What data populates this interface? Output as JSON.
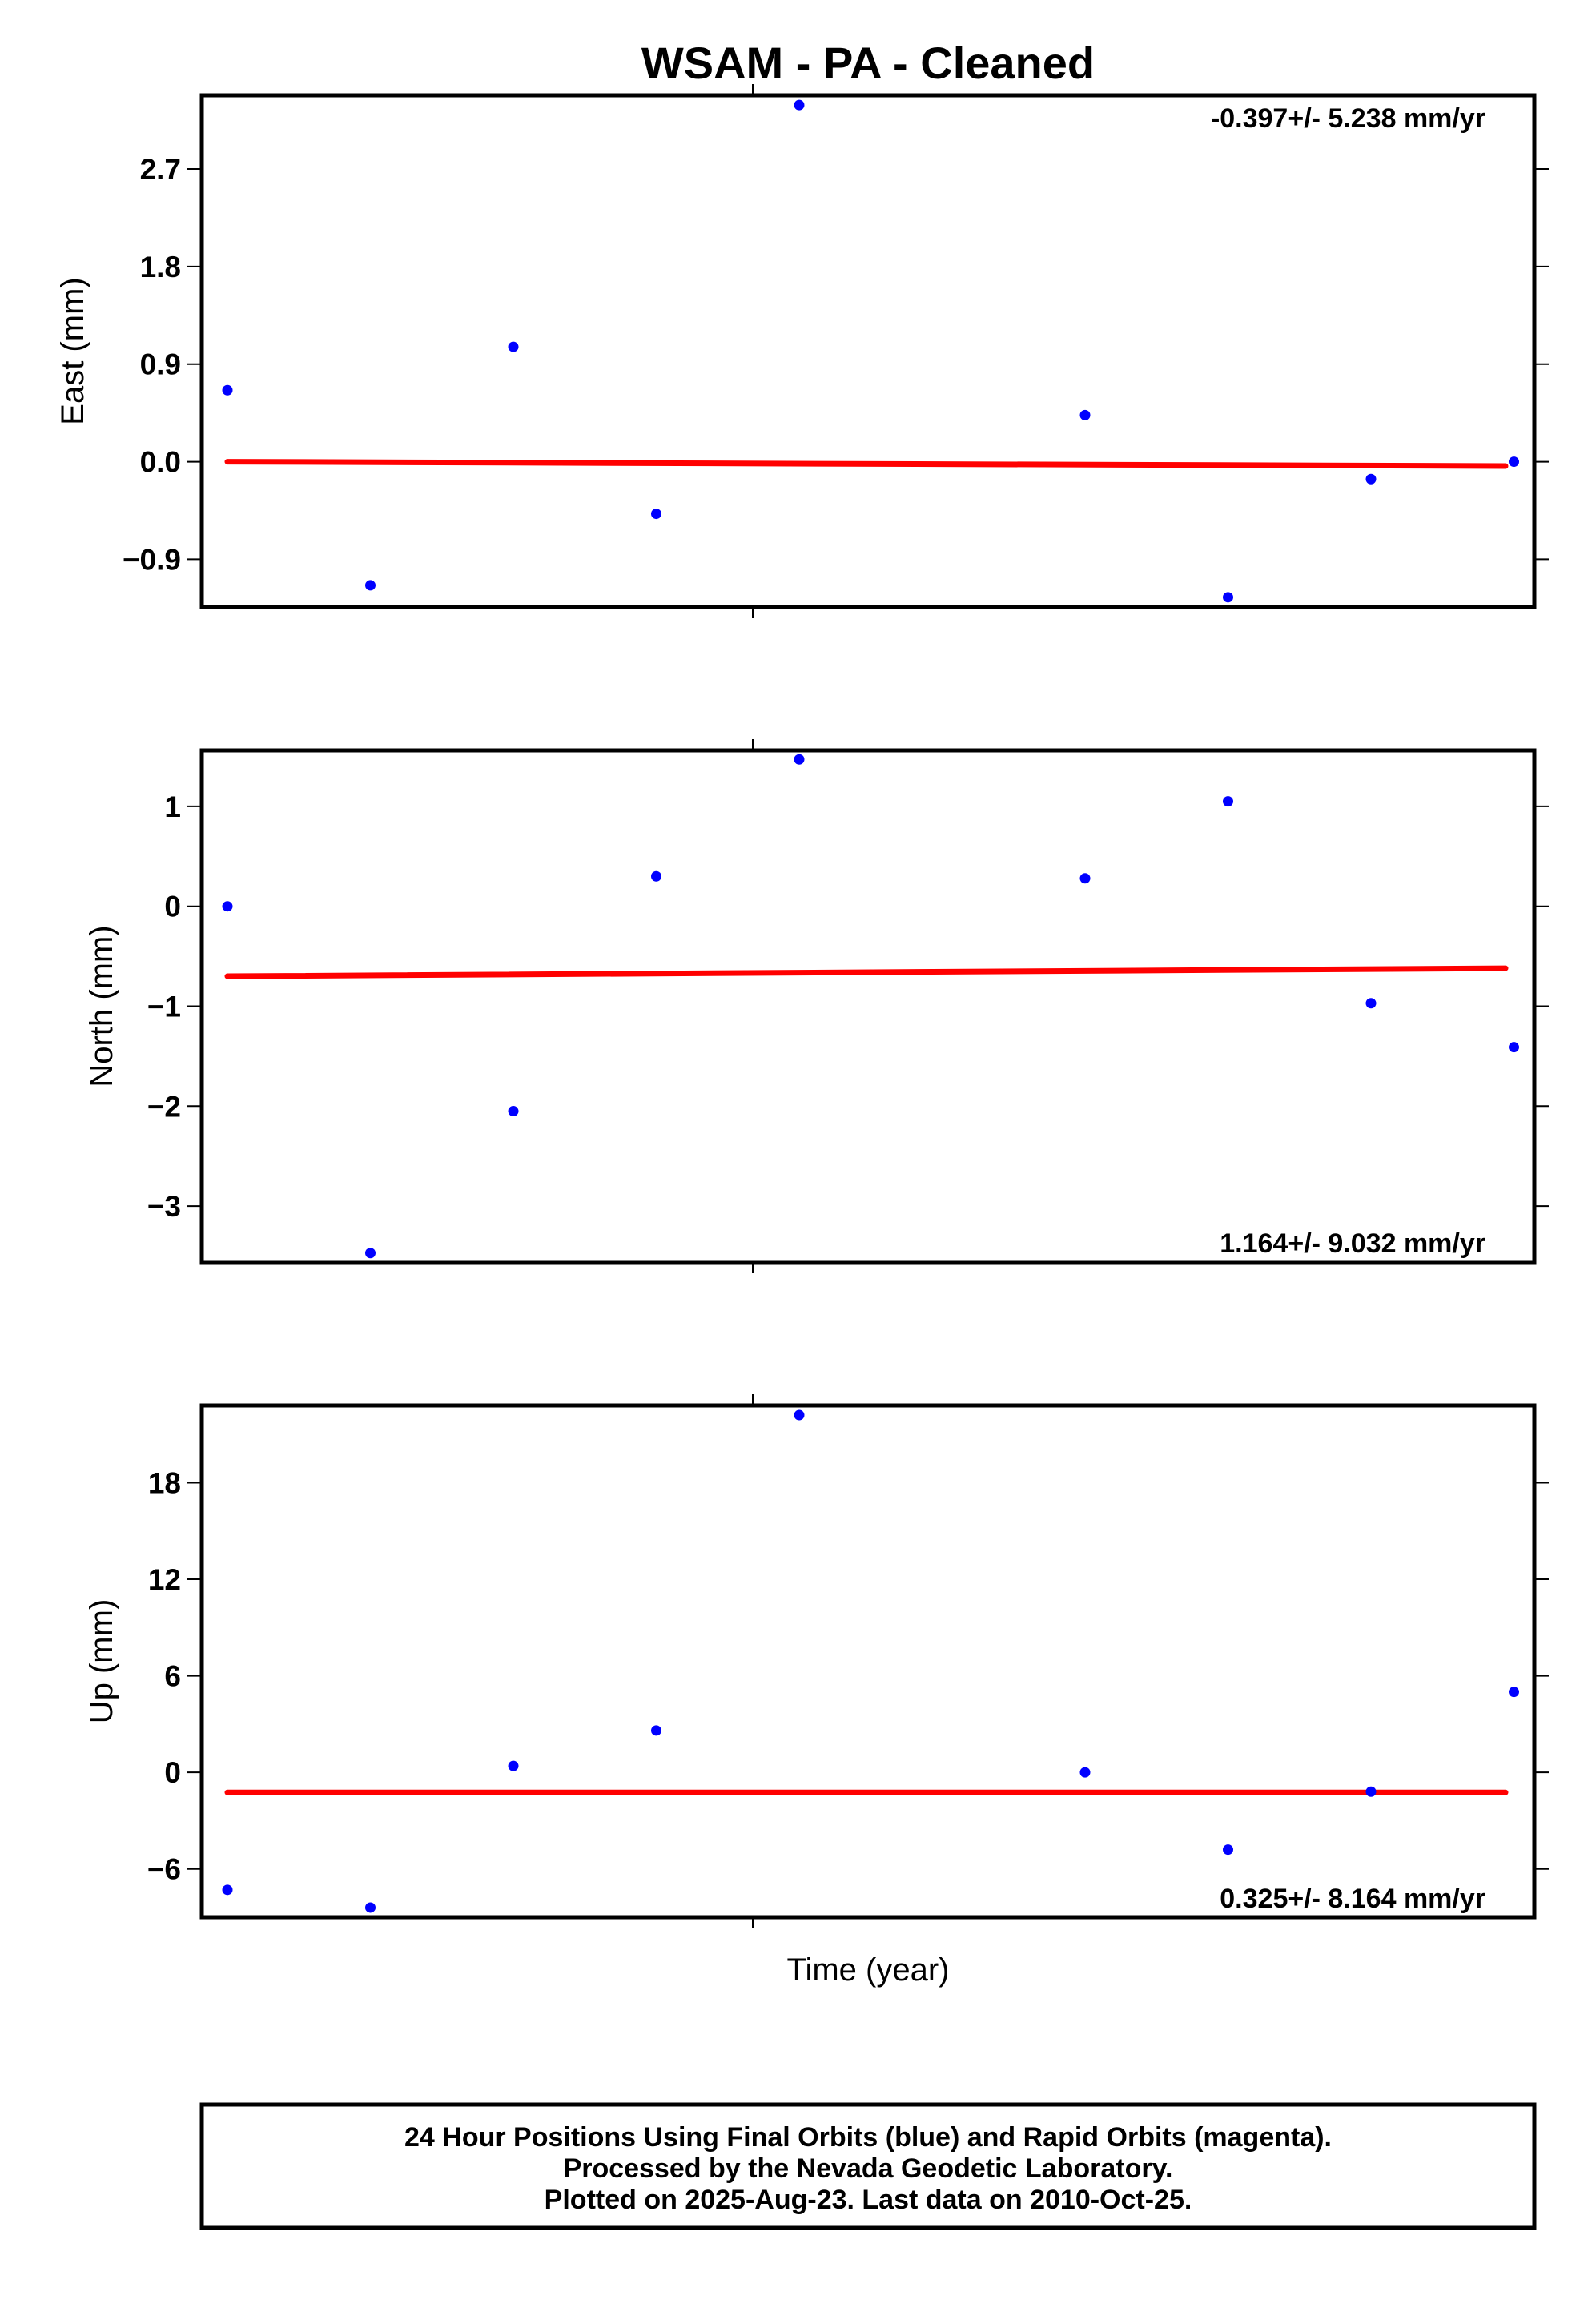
{
  "title": "WSAM  - PA - Cleaned",
  "xlabel": "Time (year)",
  "footer": {
    "line1": "24 Hour Positions Using Final Orbits (blue) and Rapid Orbits (magenta).",
    "line2": "Processed by the Nevada Geodetic Laboratory.",
    "line3": "Plotted on 2025-Aug-23. Last data on 2010-Oct-25."
  },
  "colors": {
    "points": "#0000ff",
    "trend": "#ff0000",
    "axes": "#000000"
  },
  "chart_data": [
    {
      "type": "scatter",
      "ylabel": "East (mm)",
      "rate_label": "-0.397+/- 5.238 mm/yr",
      "rate_position": "top-right",
      "ylim": [
        -1.34,
        3.38
      ],
      "yticks": [
        -0.9,
        0.0,
        0.9,
        1.8,
        2.7
      ],
      "ytick_labels": [
        "−0.9",
        "0.0",
        "0.9",
        "1.8",
        "2.7"
      ],
      "x_index": [
        0,
        1,
        2,
        3,
        4,
        6,
        7,
        8,
        9
      ],
      "values": [
        0.66,
        -1.14,
        1.06,
        -0.48,
        3.29,
        0.43,
        -1.25,
        -0.16,
        0.0
      ],
      "trend": [
        0.0,
        -0.04
      ],
      "grid": false
    },
    {
      "type": "scatter",
      "ylabel": "North (mm)",
      "rate_label": "1.164+/- 9.032 mm/yr",
      "rate_position": "bottom-right",
      "ylim": [
        -3.56,
        1.56
      ],
      "yticks": [
        -3,
        -2,
        -1,
        0,
        1
      ],
      "ytick_labels": [
        "−3",
        "−2",
        "−1",
        "0",
        "1"
      ],
      "x_index": [
        0,
        1,
        2,
        3,
        4,
        6,
        7,
        8,
        9
      ],
      "values": [
        0.0,
        -3.47,
        -2.05,
        0.3,
        1.47,
        0.28,
        1.05,
        -0.97,
        -1.41
      ],
      "trend": [
        -0.7,
        -0.62
      ],
      "grid": false
    },
    {
      "type": "scatter",
      "ylabel": "Up (mm)",
      "rate_label": "0.325+/- 8.164 mm/yr",
      "rate_position": "bottom-right",
      "ylim": [
        -9.0,
        22.8
      ],
      "yticks": [
        -6,
        0,
        6,
        12,
        18
      ],
      "ytick_labels": [
        "−6",
        "0",
        "6",
        "12",
        "18"
      ],
      "x_index": [
        0,
        1,
        2,
        3,
        4,
        6,
        7,
        8,
        9
      ],
      "values": [
        -7.3,
        -8.4,
        0.4,
        2.6,
        22.2,
        0.0,
        -4.8,
        -1.2,
        5.0
      ],
      "trend": [
        -1.25,
        -1.25
      ],
      "grid": false
    }
  ]
}
